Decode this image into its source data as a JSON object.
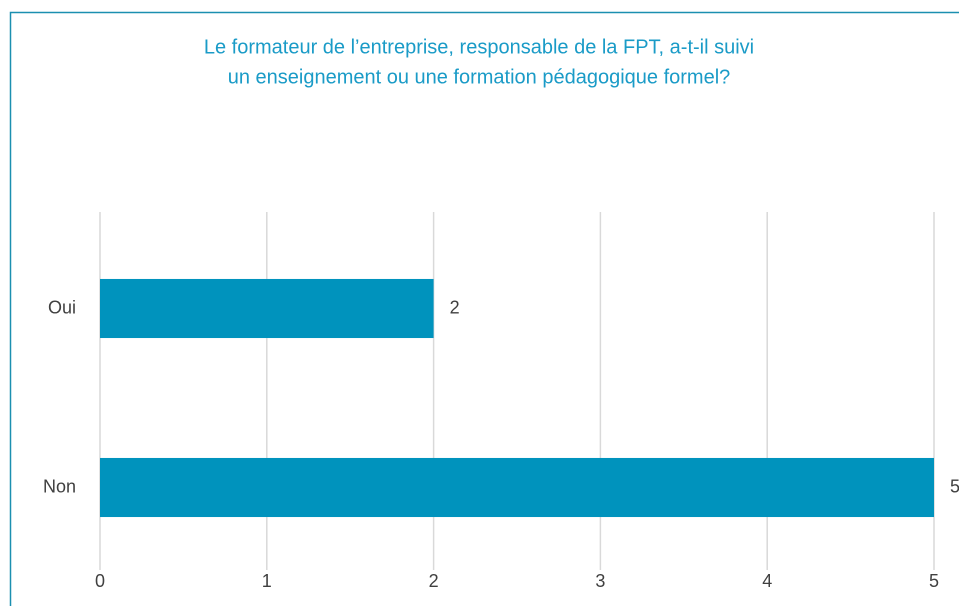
{
  "chart_data": {
    "type": "bar",
    "orientation": "horizontal",
    "title": [
      "Le formateur de l’entreprise, responsable de la FPT, a-t-il suivi",
      "un enseignement ou une formation pédagogique formel?"
    ],
    "categories": [
      "Oui",
      "Non"
    ],
    "values": [
      2,
      5
    ],
    "color": "#0093bd",
    "xlim": [
      0,
      5
    ],
    "xticks": [
      0,
      1,
      2,
      3,
      4,
      5
    ],
    "grid": true,
    "data_labels": true
  }
}
